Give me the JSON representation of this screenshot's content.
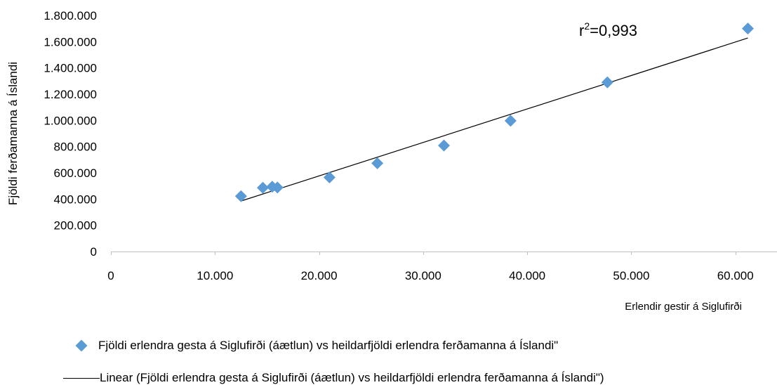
{
  "chart_data": {
    "type": "scatter",
    "xlabel": "Erlendir gestir á Siglufirði",
    "ylabel": "Fjöldi ferðamanna á Íslandi",
    "xlim": [
      0,
      64000
    ],
    "ylim": [
      0,
      1800000
    ],
    "x_ticks": [
      0,
      10000,
      20000,
      30000,
      40000,
      50000,
      60000
    ],
    "x_tick_labels": [
      "0",
      "10.000",
      "20.000",
      "30.000",
      "40.000",
      "50.000",
      "60.000"
    ],
    "y_ticks": [
      0,
      200000,
      400000,
      600000,
      800000,
      1000000,
      1200000,
      1400000,
      1600000,
      1800000
    ],
    "y_tick_labels": [
      "0",
      "200.000",
      "400.000",
      "600.000",
      "800.000",
      "1.000.000",
      "1.200.000",
      "1.400.000",
      "1.600.000",
      "1.800.000"
    ],
    "series": [
      {
        "name": "Fjöldi erlendra gesta á Siglufirði (áætlun) vs heildarfjöldi erlendra ferðamanna á Íslandi\"",
        "marker": "diamond",
        "color": "#5b9bd5",
        "points": [
          {
            "x": 12500,
            "y": 422000
          },
          {
            "x": 14600,
            "y": 486000
          },
          {
            "x": 15500,
            "y": 494000
          },
          {
            "x": 16000,
            "y": 488000
          },
          {
            "x": 21000,
            "y": 565000
          },
          {
            "x": 25600,
            "y": 673000
          },
          {
            "x": 32000,
            "y": 808000
          },
          {
            "x": 38400,
            "y": 997000
          },
          {
            "x": 47700,
            "y": 1290000
          },
          {
            "x": 61200,
            "y": 1700000
          }
        ]
      }
    ],
    "trendline": {
      "name": "Linear (Fjöldi erlendra gesta á Siglufirði (áætlun) vs heildarfjöldi erlendra ferðamanna á Íslandi\")",
      "type": "linear",
      "color": "#000000",
      "x_range": [
        12500,
        61200
      ],
      "y_range": [
        385000,
        1628000
      ]
    },
    "annotation": {
      "base": "r",
      "sup": "2",
      "rest": "=0,993"
    },
    "grid": false,
    "legend_position": "bottom"
  }
}
